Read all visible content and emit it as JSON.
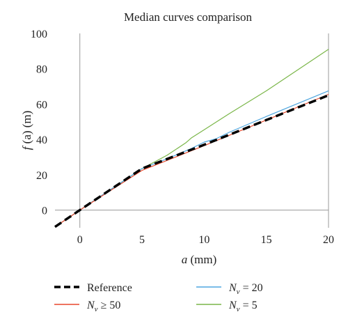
{
  "chart_data": {
    "type": "line",
    "title": "Median curves comparison",
    "xlabel": {
      "italic": "a",
      "rest": " (mm)"
    },
    "ylabel": {
      "italic": "f",
      "rest": " (a) (m)"
    },
    "xlim": [
      -2,
      20
    ],
    "ylim": [
      -10,
      100
    ],
    "xticks": [
      0,
      5,
      10,
      15,
      20
    ],
    "yticks": [
      0,
      20,
      40,
      60,
      80,
      100
    ],
    "grid": false,
    "axis_lines": {
      "x": 0,
      "y": 0
    },
    "legend_position": "bottom",
    "series": [
      {
        "name": {
          "main": "Reference"
        },
        "color": "#000000",
        "dashed": true,
        "width": 3.5,
        "x": [
          -2,
          0,
          5,
          10,
          15,
          20
        ],
        "y": [
          -9.5,
          0,
          23.5,
          37,
          51,
          65
        ]
      },
      {
        "name": {
          "main": "N",
          "sub": "v",
          "suffix": " ≥ 50"
        },
        "color": "#e8472b",
        "dashed": false,
        "width": 1.2,
        "x": [
          -2,
          0,
          5,
          10,
          15,
          20
        ],
        "y": [
          -9.5,
          0,
          22.5,
          36.5,
          51,
          65.5
        ]
      },
      {
        "name": {
          "main": "N",
          "sub": "v",
          "suffix": " = 20"
        },
        "color": "#4ea6e0",
        "dashed": false,
        "width": 1.2,
        "x": [
          -2,
          0,
          5,
          7,
          9,
          10,
          11,
          12,
          15,
          20
        ],
        "y": [
          -9.5,
          0,
          23.5,
          29,
          35,
          38.5,
          40.5,
          44,
          53,
          67.5
        ]
      },
      {
        "name": {
          "main": "N",
          "sub": "v",
          "suffix": " = 5"
        },
        "color": "#7ab648",
        "dashed": false,
        "width": 1.2,
        "x": [
          -2,
          0,
          5,
          7,
          8.5,
          9,
          10,
          12,
          15,
          20
        ],
        "y": [
          -9.5,
          0,
          23.5,
          31,
          38,
          41,
          45.5,
          54.5,
          67.5,
          91
        ]
      }
    ]
  }
}
